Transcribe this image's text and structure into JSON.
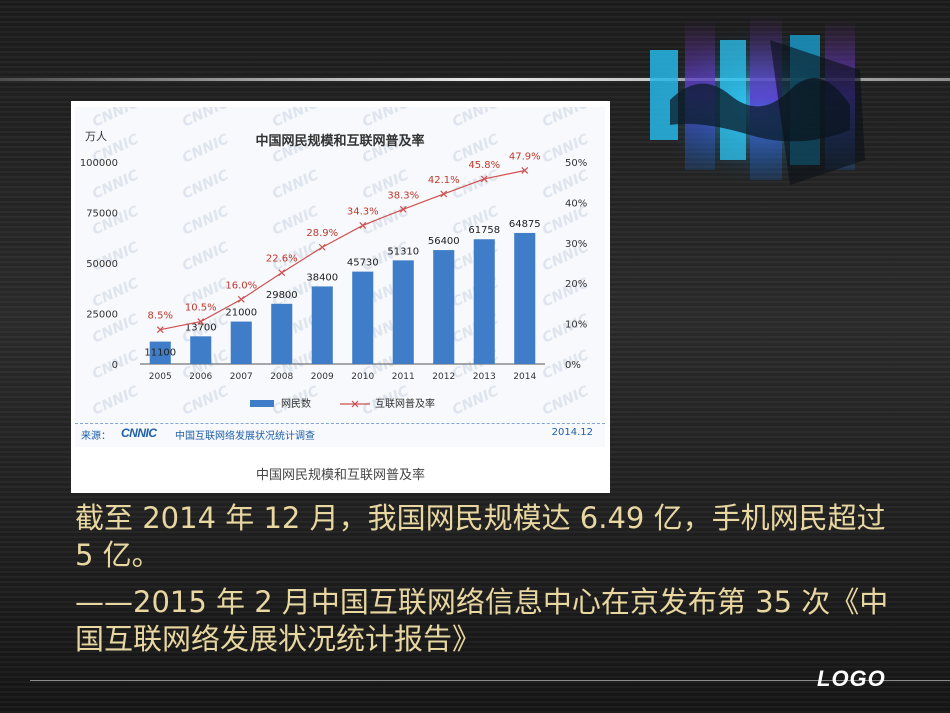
{
  "slide": {
    "paragraph1": "截至 2014 年 12 月，我国网民规模达 6.49 亿，手机网民超过 5 亿。",
    "paragraph2": "——2015 年 2 月中国互联网络信息中心在京发布第 35 次《中国互联网络发展状况统计报告》",
    "logo": "LOGO",
    "caption": "中国网民规模和互联网普及率"
  },
  "chart_data": {
    "type": "bar",
    "title": "中国网民规模和互联网普及率",
    "y_unit_label": "万人",
    "categories": [
      "2005",
      "2006",
      "2007",
      "2008",
      "2009",
      "2010",
      "2011",
      "2012",
      "2013",
      "2014"
    ],
    "series": [
      {
        "name": "网民数",
        "type": "bar",
        "axis": "left",
        "values": [
          11100,
          13700,
          21000,
          29800,
          38400,
          45730,
          51310,
          56400,
          61758,
          64875
        ],
        "labels": [
          "11100",
          "13700",
          "21000",
          "29800",
          "38400",
          "45730",
          "51310",
          "56400",
          "61758",
          "64875"
        ]
      },
      {
        "name": "互联网普及率",
        "type": "line",
        "axis": "right",
        "values": [
          8.5,
          10.5,
          16.0,
          22.6,
          28.9,
          34.3,
          38.3,
          42.1,
          45.8,
          47.9
        ],
        "labels": [
          "8.5%",
          "10.5%",
          "16.0%",
          "22.6%",
          "28.9%",
          "34.3%",
          "38.3%",
          "42.1%",
          "45.8%",
          "47.9%"
        ]
      }
    ],
    "y_left": {
      "ylim": [
        0,
        100000
      ],
      "ticks": [
        "0",
        "25000",
        "50000",
        "75000",
        "100000"
      ]
    },
    "y_right": {
      "ylim": [
        0,
        50
      ],
      "ticks": [
        "0%",
        "10%",
        "20%",
        "30%",
        "40%",
        "50%"
      ]
    },
    "source_prefix": "来源：",
    "source_org": "CNNIC",
    "source_text": "中国互联网络发展状况统计调查",
    "date": "2014.12",
    "colors": {
      "bar": "#3f7dc9",
      "line": "#d05050",
      "label_line": "#c0392b"
    },
    "grid": false,
    "legend": "bottom"
  }
}
